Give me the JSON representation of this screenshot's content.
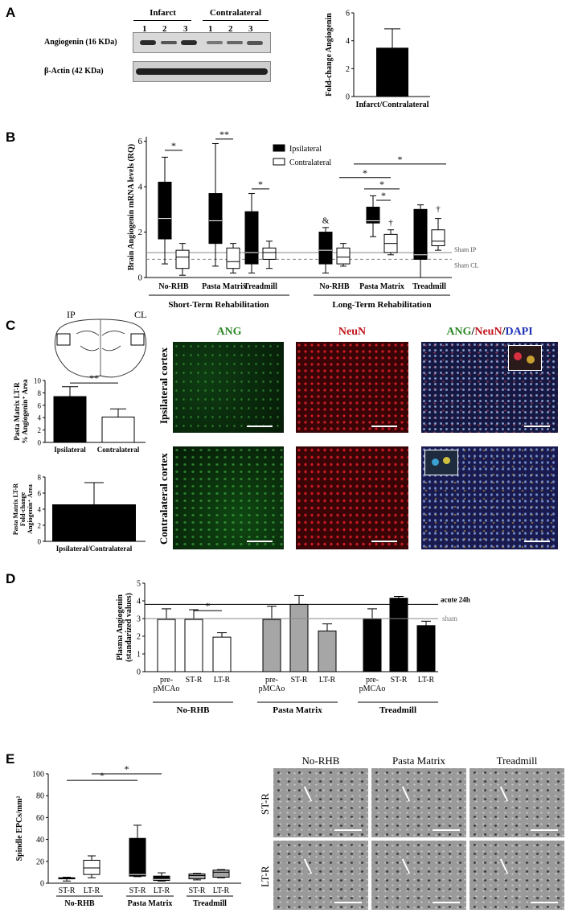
{
  "panels": {
    "A": "A",
    "B": "B",
    "C": "C",
    "D": "D",
    "E": "E"
  },
  "colors": {
    "black": "#000000",
    "white": "#ffffff",
    "gray": "#a6a6a6",
    "ang_green": "#2f8a2a",
    "neun_red": "#c0141c",
    "dapi_blue": "#1c2fb5"
  },
  "blot": {
    "group_infarct": "Infarct",
    "group_contralateral": "Contralateral",
    "lanes": [
      "1",
      "2",
      "3",
      "1",
      "2",
      "3"
    ],
    "row1_label": "Angiogenin (16 KDa)",
    "row2_label": "β-Actin (42 KDa)"
  },
  "chart_data": [
    {
      "id": "A",
      "type": "bar",
      "ylabel": "Fold-change Angiogenin",
      "categories": [
        "Infarct/Contralateral"
      ],
      "values": [
        3.5
      ],
      "errors": [
        1.35
      ],
      "yticks": [
        "0",
        "2",
        "4",
        "6"
      ],
      "ylim": [
        0,
        6
      ]
    },
    {
      "id": "B",
      "type": "box",
      "ylabel": "Brain Angiogenin mRNA levels (RQ)",
      "yticks": [
        "0",
        "2",
        "4",
        "6"
      ],
      "ylim": [
        0,
        6.2
      ],
      "legend": [
        "Ipsilateral",
        "Contralateral"
      ],
      "groups": [
        {
          "label": "No-RHB",
          "section": "Short-Term Rehabilitation"
        },
        {
          "label": "Pasta Matrix",
          "section": "Short-Term Rehabilitation"
        },
        {
          "label": "Treadmill",
          "section": "Short-Term Rehabilitation"
        },
        {
          "label": "No-RHB",
          "section": "Long-Term Rehabilitation"
        },
        {
          "label": "Pasta Matrix",
          "section": "Long-Term Rehabilitation"
        },
        {
          "label": "Treadmill",
          "section": "Long-Term Rehabilitation"
        }
      ],
      "sections": [
        "Short-Term Rehabilitation",
        "Long-Term Rehabilitation"
      ],
      "series": [
        {
          "name": "Ipsilateral",
          "boxes": [
            {
              "min": 0.6,
              "q1": 1.7,
              "median": 2.6,
              "q3": 4.2,
              "max": 5.3
            },
            {
              "min": 0.5,
              "q1": 1.5,
              "median": 2.5,
              "q3": 3.7,
              "max": 5.9
            },
            {
              "min": 0.2,
              "q1": 0.6,
              "median": 1.1,
              "q3": 2.9,
              "max": 3.7
            },
            {
              "min": 0.2,
              "q1": 0.6,
              "median": 1.2,
              "q3": 2.0,
              "max": 2.2
            },
            {
              "min": 1.8,
              "q1": 2.4,
              "median": 2.5,
              "q3": 3.1,
              "max": 3.6
            },
            {
              "min": 0.0,
              "q1": 0.8,
              "median": 1.0,
              "q3": 3.0,
              "max": 3.2
            }
          ]
        },
        {
          "name": "Contralateral",
          "boxes": [
            {
              "min": 0.1,
              "q1": 0.4,
              "median": 0.9,
              "q3": 1.2,
              "max": 1.5
            },
            {
              "min": 0.2,
              "q1": 0.4,
              "median": 0.7,
              "q3": 1.3,
              "max": 1.5
            },
            {
              "min": 0.4,
              "q1": 0.8,
              "median": 1.1,
              "q3": 1.3,
              "max": 1.6
            },
            {
              "min": 0.5,
              "q1": 0.6,
              "median": 0.9,
              "q3": 1.3,
              "max": 1.5
            },
            {
              "min": 1.0,
              "q1": 1.1,
              "median": 1.5,
              "q3": 1.9,
              "max": 2.1
            },
            {
              "min": 1.2,
              "q1": 1.4,
              "median": 1.6,
              "q3": 2.1,
              "max": 2.6
            }
          ]
        }
      ],
      "sham_ip": 1.1,
      "sham_cl": 0.8,
      "sham_ip_label": "Sham IP",
      "sham_cl_label": "Sham CL",
      "annotations": [
        "*",
        "**",
        "*",
        "*",
        "*",
        "*",
        "*",
        "&",
        "†",
        "†"
      ]
    },
    {
      "id": "C1",
      "type": "bar",
      "ylabel": [
        "Pasta Matrix LT-R",
        "% Angiogenin⁺ Area"
      ],
      "categories": [
        "Ipsilateral",
        "Contralateral"
      ],
      "colors": [
        "#000000",
        "#ffffff"
      ],
      "values": [
        7.4,
        4.1
      ],
      "errors": [
        1.6,
        1.3
      ],
      "yticks": [
        "0",
        "2",
        "4",
        "6",
        "8",
        "10"
      ],
      "ylim": [
        0,
        10
      ],
      "annotations": [
        "**"
      ]
    },
    {
      "id": "C2",
      "type": "bar",
      "ylabel": [
        "Pasta Matrix LT-R",
        "Fold-change",
        "Angiogenin⁺ Area"
      ],
      "categories": [
        "Ipsilateral/Contralateral"
      ],
      "values": [
        4.6
      ],
      "errors": [
        2.7
      ],
      "yticks": [
        "0",
        "2",
        "4",
        "6",
        "8"
      ],
      "ylim": [
        0,
        8
      ]
    },
    {
      "id": "D",
      "type": "bar",
      "ylabel": [
        "Plasma Angiogenin",
        "(standarized values)"
      ],
      "categories": [
        "pre-pMCAo",
        "ST-R",
        "LT-R",
        "pre-pMCAo",
        "ST-R",
        "LT-R",
        "pre-pMCAo",
        "ST-R",
        "LT-R"
      ],
      "tick_lines": [
        [
          "pre-",
          "pMCAo"
        ],
        [
          "ST-R"
        ],
        [
          "LT-R"
        ],
        [
          "pre-",
          "pMCAo"
        ],
        [
          "ST-R"
        ],
        [
          "LT-R"
        ],
        [
          "pre-",
          "pMCAo"
        ],
        [
          "ST-R"
        ],
        [
          "LT-R"
        ]
      ],
      "groups": [
        "No-RHB",
        "Pasta Matrix",
        "Treadmill"
      ],
      "colors": [
        "#ffffff",
        "#ffffff",
        "#ffffff",
        "#a6a6a6",
        "#a6a6a6",
        "#a6a6a6",
        "#000000",
        "#000000",
        "#000000"
      ],
      "values": [
        2.95,
        2.95,
        1.95,
        2.95,
        3.8,
        2.3,
        3.0,
        4.15,
        2.6
      ],
      "errors": [
        0.6,
        0.55,
        0.25,
        0.75,
        0.5,
        0.4,
        0.55,
        0.1,
        0.25
      ],
      "yticks": [
        "0",
        "1",
        "2",
        "3",
        "4",
        "5"
      ],
      "ylim": [
        0,
        5
      ],
      "ref_acute": 3.8,
      "ref_acute_label": "acute 24h",
      "ref_sham": 3.0,
      "ref_sham_label": "sham",
      "annotations": [
        "*"
      ]
    },
    {
      "id": "E",
      "type": "box",
      "ylabel": "Spindle EPCs/mm²",
      "yticks": [
        "0",
        "20",
        "40",
        "60",
        "80",
        "100"
      ],
      "ylim": [
        0,
        100
      ],
      "categories": [
        "ST-R",
        "LT-R",
        "ST-R",
        "LT-R",
        "ST-R",
        "LT-R"
      ],
      "groups": [
        "No-RHB",
        "Pasta Matrix",
        "Treadmill"
      ],
      "colors": [
        "#ffffff",
        "#ffffff",
        "#000000",
        "#000000",
        "#a6a6a6",
        "#a6a6a6"
      ],
      "boxes": [
        {
          "min": 2,
          "q1": 4,
          "median": 4.5,
          "q3": 5,
          "max": 5.5
        },
        {
          "min": 5,
          "q1": 8,
          "median": 14,
          "q3": 21,
          "max": 25
        },
        {
          "min": 6,
          "q1": 6.5,
          "median": 8,
          "q3": 41,
          "max": 53
        },
        {
          "min": 2,
          "q1": 2.5,
          "median": 3.5,
          "q3": 6.5,
          "max": 9.5
        },
        {
          "min": 3,
          "q1": 4,
          "median": 7,
          "q3": 8.5,
          "max": 9
        },
        {
          "min": 5,
          "q1": 5.5,
          "median": 10,
          "q3": 12,
          "max": 12.5
        }
      ],
      "annotations": [
        "*",
        "*"
      ]
    }
  ],
  "micrographs": {
    "C": {
      "col_titles": [
        "ANG",
        "NeuN"
      ],
      "merge_title": {
        "ang": "ANG",
        "slash1": "/",
        "neun": "NeuN",
        "slash2": "/",
        "dapi": "DAPI"
      },
      "row_labels": [
        "Ipsilateral cortex",
        "Contralateral cortex"
      ],
      "brain_labels": {
        "ip": "IP",
        "cl": "CL"
      }
    },
    "E": {
      "col_titles": [
        "No-RHB",
        "Pasta Matrix",
        "Treadmill"
      ],
      "row_labels": [
        "ST-R",
        "LT-R"
      ]
    }
  }
}
